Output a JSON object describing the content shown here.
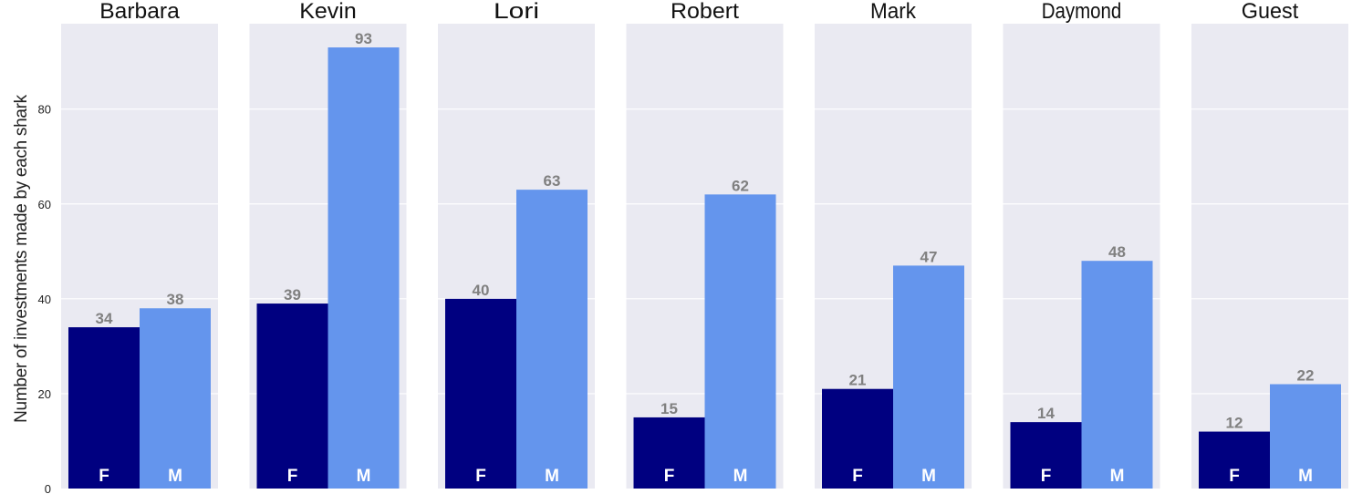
{
  "chart_data": {
    "type": "bar",
    "ylabel": "Number of investments made by each shark",
    "ylim": [
      0,
      98
    ],
    "yticks": [
      0,
      20,
      40,
      60,
      80
    ],
    "grid": true,
    "categories": [
      "F",
      "M"
    ],
    "colors": {
      "F": "#000080",
      "M": "#6495ED",
      "background": "#EAEAF2",
      "value_label": "#808080",
      "bar_label": "#FFFFFF"
    },
    "panels": [
      {
        "title": "Barbara",
        "values": [
          34,
          38
        ]
      },
      {
        "title": "Kevin",
        "values": [
          39,
          93
        ]
      },
      {
        "title": "Lori",
        "values": [
          40,
          63
        ]
      },
      {
        "title": "Robert",
        "values": [
          15,
          62
        ]
      },
      {
        "title": "Mark",
        "values": [
          21,
          47
        ]
      },
      {
        "title": "Daymond",
        "values": [
          14,
          48
        ]
      },
      {
        "title": "Guest",
        "values": [
          12,
          22
        ]
      }
    ]
  }
}
